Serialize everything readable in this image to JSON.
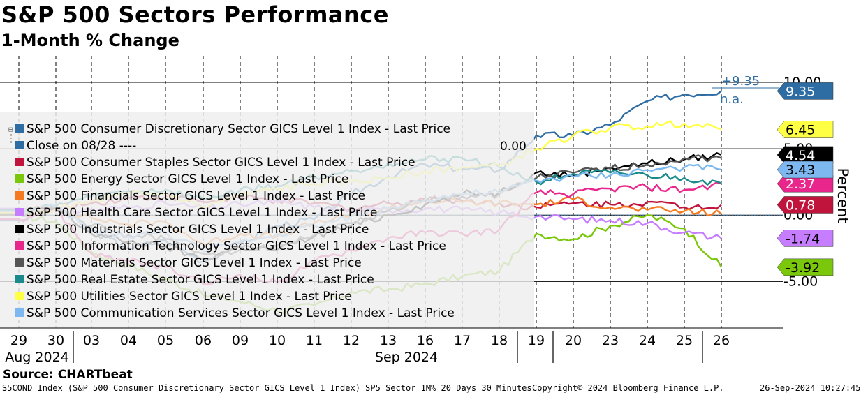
{
  "title": "S&P 500 Sectors Performance",
  "subtitle": "1-Month % Change",
  "source": "Source: CHARTbeat",
  "footer": {
    "left": "S5COND Index (S&P 500 Consumer Discretionary Sector GICS Level 1 Index) SP5 Sector 1M% 20 Days 30 Minutes",
    "center": "Copyright© 2024 Bloomberg Finance L.P.",
    "right": "26-Sep-2024 10:27:45"
  },
  "chart_data": {
    "type": "line",
    "title": "S&P 500 Sectors Performance",
    "subtitle": "1-Month % Change",
    "ylabel": "Percent",
    "ylim": [
      -8.5,
      12
    ],
    "y_ticks": [
      10,
      5,
      0,
      -5
    ],
    "y_tick_labels": [
      "10.00",
      "5.00",
      "0.00",
      "-5.00"
    ],
    "x_tick_labels": [
      "29",
      "30",
      "03",
      "04",
      "05",
      "06",
      "09",
      "10",
      "11",
      "12",
      "13",
      "16",
      "17",
      "18",
      "19",
      "20",
      "23",
      "24",
      "25",
      "26"
    ],
    "x_group_labels": [
      "Aug 2024",
      "Sep 2024"
    ],
    "x_group_spans": [
      [
        0,
        1
      ],
      [
        2,
        19
      ]
    ],
    "close_label": "0.00",
    "legend_location": "left",
    "series": [
      {
        "name": "S&P 500 Consumer Discretionary Sector GICS Level 1 Index - Last Price",
        "color": "#2e6da4",
        "last": 9.35,
        "badge": "9.35",
        "values": [
          -0.4,
          0.6,
          -1.2,
          -2.5,
          -1.9,
          -3.5,
          -2.1,
          -0.8,
          -0.3,
          1.6,
          2.9,
          3.8,
          3.5,
          3.4,
          6.0,
          6.0,
          6.8,
          8.6,
          9.1,
          9.35
        ]
      },
      {
        "name": "Close on 08/28 ----",
        "color": "#2e6da4",
        "close_line": true
      },
      {
        "name": "S&P 500 Consumer Staples Sector GICS Level 1 Index - Last Price",
        "color": "#c0143c",
        "last": 0.78,
        "badge": "0.78",
        "values": [
          0.1,
          0.5,
          0.9,
          1.3,
          1.4,
          1.0,
          1.3,
          1.1,
          0.9,
          0.5,
          0.9,
          1.2,
          1.1,
          0.9,
          0.6,
          0.9,
          0.8,
          1.0,
          0.6,
          0.78
        ]
      },
      {
        "name": "S&P 500 Energy Sector GICS Level 1 Index - Last Price",
        "color": "#7ac70c",
        "last": -3.92,
        "badge": "-3.92",
        "values": [
          0.0,
          -0.5,
          -2.8,
          -3.8,
          -4.8,
          -6.0,
          -6.5,
          -7.2,
          -6.8,
          -5.8,
          -5.6,
          -5.2,
          -4.6,
          -4.2,
          -1.4,
          -1.8,
          -0.8,
          0.0,
          -1.0,
          -3.92
        ]
      },
      {
        "name": "S&P 500 Financials Sector GICS Level 1 Index - Last Price",
        "color": "#f47920",
        "last": 0.1,
        "badge": "",
        "values": [
          0.3,
          0.6,
          -0.2,
          -0.7,
          -0.5,
          -2.2,
          -1.4,
          -1.6,
          -0.6,
          0.0,
          0.5,
          1.1,
          1.0,
          0.9,
          0.8,
          1.2,
          0.6,
          0.4,
          0.3,
          0.1
        ]
      },
      {
        "name": "S&P 500 Health Care Sector GICS Level 1 Index - Last Price",
        "color": "#c77dff",
        "last": -1.74,
        "badge": "-1.74",
        "values": [
          0.5,
          0.3,
          0.4,
          0.6,
          0.9,
          0.5,
          0.8,
          1.0,
          0.6,
          0.3,
          0.4,
          0.5,
          0.4,
          0.2,
          -0.1,
          -0.3,
          -0.4,
          -0.6,
          -1.3,
          -1.74
        ]
      },
      {
        "name": "S&P 500 Industrials Sector GICS Level 1 Index - Last Price",
        "color": "#000000",
        "last": 4.54,
        "badge": "4.54",
        "values": [
          0.2,
          0.5,
          -1.4,
          -2.0,
          -2.4,
          -3.3,
          -2.4,
          -2.6,
          -1.6,
          -0.8,
          0.0,
          0.8,
          1.6,
          1.7,
          3.2,
          3.0,
          3.6,
          3.9,
          4.2,
          4.54
        ]
      },
      {
        "name": "S&P 500 Information Technology Sector GICS Level 1 Index - Last Price",
        "color": "#e8268c",
        "last": 2.37,
        "badge": "2.37",
        "values": [
          -0.3,
          0.5,
          -2.9,
          -3.5,
          -3.9,
          -5.2,
          -4.5,
          -5.1,
          -3.5,
          -2.6,
          -1.7,
          -1.3,
          -1.4,
          -1.1,
          1.7,
          1.6,
          2.0,
          2.1,
          1.9,
          2.37
        ]
      },
      {
        "name": "S&P 500 Materials Sector GICS Level 1 Index - Last Price",
        "color": "#555555",
        "last": 4.3,
        "badge": "",
        "values": [
          0.0,
          0.5,
          -0.8,
          -1.5,
          -1.8,
          -2.9,
          -2.6,
          -2.3,
          -1.5,
          -0.6,
          0.3,
          1.1,
          1.4,
          1.6,
          2.8,
          3.2,
          3.5,
          3.8,
          4.3,
          4.3
        ]
      },
      {
        "name": "S&P 500 Real Estate Sector GICS Level 1 Index - Last Price",
        "color": "#1a8a8a",
        "last": 2.4,
        "badge": "",
        "values": [
          0.4,
          0.7,
          1.4,
          1.8,
          1.9,
          1.2,
          1.9,
          2.2,
          2.9,
          3.3,
          3.9,
          4.2,
          4.3,
          3.6,
          2.5,
          3.1,
          3.2,
          3.0,
          2.8,
          2.4
        ]
      },
      {
        "name": "S&P 500 Utilities Sector GICS Level 1 Index - Last Price",
        "color": "#ffff44",
        "last": 6.45,
        "badge": "6.45",
        "values": [
          0.2,
          0.4,
          1.0,
          1.6,
          1.6,
          0.6,
          1.5,
          2.0,
          2.4,
          2.5,
          2.8,
          3.3,
          3.6,
          3.7,
          5.0,
          6.0,
          6.6,
          6.7,
          6.9,
          6.45
        ]
      },
      {
        "name": "S&P 500 Communication Services Sector GICS Level 1 Index - Last Price",
        "color": "#7db8f0",
        "last": 3.43,
        "badge": "3.43",
        "values": [
          0.3,
          0.6,
          -1.2,
          -1.6,
          -1.3,
          -2.7,
          -2.0,
          -1.4,
          -0.8,
          -0.1,
          0.5,
          1.2,
          1.6,
          1.7,
          2.6,
          2.9,
          3.0,
          3.4,
          3.6,
          3.43
        ]
      }
    ],
    "annotations": [
      {
        "text": "+9.35",
        "color": "#2e6da4"
      },
      {
        "text": "n.a.",
        "color": "#2e6da4"
      }
    ]
  }
}
